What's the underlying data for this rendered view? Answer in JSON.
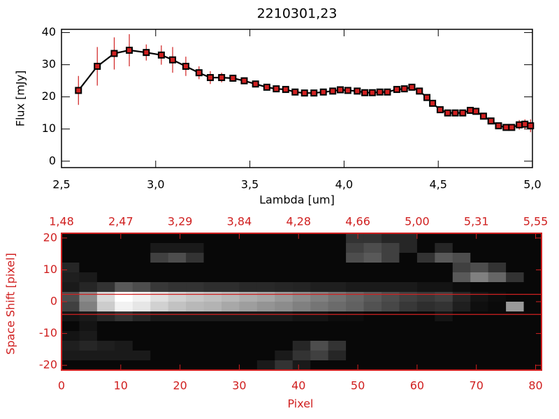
{
  "chart_data": [
    {
      "type": "line",
      "title": "2210301,23",
      "x_label": "Lambda [um]",
      "y_label": "Flux [mJy]",
      "x": [
        2.59,
        2.69,
        2.78,
        2.86,
        2.95,
        3.03,
        3.09,
        3.16,
        3.23,
        3.29,
        3.35,
        3.41,
        3.47,
        3.53,
        3.59,
        3.64,
        3.69,
        3.74,
        3.79,
        3.84,
        3.89,
        3.94,
        3.98,
        4.02,
        4.07,
        4.11,
        4.15,
        4.19,
        4.23,
        4.28,
        4.32,
        4.36,
        4.4,
        4.44,
        4.47,
        4.51,
        4.55,
        4.59,
        4.63,
        4.67,
        4.7,
        4.74,
        4.78,
        4.82,
        4.86,
        4.89,
        4.93,
        4.96,
        4.99
      ],
      "series": [
        {
          "color": "#000000",
          "error_color": "#d02020",
          "values": [
            22,
            29.5,
            33.5,
            34.5,
            33.8,
            33,
            31.5,
            29.5,
            27.5,
            26,
            26,
            25.8,
            25,
            24,
            23,
            22.5,
            22.3,
            21.5,
            21.2,
            21.2,
            21.5,
            21.8,
            22.2,
            22,
            21.8,
            21.3,
            21.3,
            21.5,
            21.5,
            22.3,
            22.5,
            23,
            21.8,
            19.8,
            18,
            16,
            15,
            15,
            15,
            15.8,
            15.5,
            14,
            12.5,
            11,
            10.5,
            10.5,
            11.3,
            11.5,
            11
          ],
          "errors": [
            4.5,
            6,
            5,
            5,
            2.5,
            3,
            4,
            3,
            2,
            2,
            1.5,
            1,
            1,
            0.8,
            0.8,
            0.8,
            0.8,
            0.8,
            0.8,
            0.8,
            0.8,
            0.8,
            0.8,
            0.8,
            0.8,
            0.8,
            0.8,
            0.8,
            0.8,
            0.8,
            0.8,
            0.8,
            0.8,
            0.8,
            0.8,
            0.8,
            0.8,
            0.8,
            0.8,
            0.8,
            0.8,
            0.8,
            0.8,
            0.8,
            0.8,
            0.8,
            1.5,
            1.5,
            2
          ]
        }
      ],
      "xlim": [
        2.5,
        5.0
      ],
      "ylim": [
        -2,
        41
      ],
      "xticks": [
        {
          "value": 2.5,
          "label": "2,5"
        },
        {
          "value": 3.0,
          "label": "3,0"
        },
        {
          "value": 3.5,
          "label": "3,5"
        },
        {
          "value": 4.0,
          "label": "4,0"
        },
        {
          "value": 4.5,
          "label": "4,5"
        },
        {
          "value": 5.0,
          "label": "5,0"
        }
      ],
      "yticks": [
        0,
        10,
        20,
        30,
        40
      ]
    },
    {
      "type": "heatmap",
      "x_label": "Pixel",
      "y_label": "Space Shift [pixel]",
      "color": "#d02020",
      "xlim": [
        0,
        81
      ],
      "ylim": [
        -21.5,
        21.5
      ],
      "xticks": [
        0,
        10,
        20,
        30,
        40,
        50,
        60,
        70,
        80
      ],
      "x2ticks": [
        {
          "value": 1.48,
          "label": "1,48"
        },
        {
          "value": 2.47,
          "label": "2,47"
        },
        {
          "value": 3.29,
          "label": "3,29"
        },
        {
          "value": 3.84,
          "label": "3,84"
        },
        {
          "value": 4.28,
          "label": "4,28"
        },
        {
          "value": 4.66,
          "label": "4,66"
        },
        {
          "value": 5.0,
          "label": "5,00"
        },
        {
          "value": 5.31,
          "label": "5,31"
        },
        {
          "value": 5.55,
          "label": "5,55"
        }
      ],
      "yticks": [
        -20,
        -10,
        0,
        10,
        20
      ],
      "hlines": [
        2.3,
        -4.0
      ],
      "rows": [
        [
          3,
          3,
          3,
          3,
          3,
          3,
          3,
          3,
          3,
          3,
          3,
          3,
          3,
          3,
          3,
          3,
          20,
          20,
          15,
          15,
          3,
          3,
          3,
          3,
          3,
          3,
          3
        ],
        [
          3,
          3,
          3,
          3,
          3,
          10,
          10,
          10,
          3,
          3,
          3,
          3,
          3,
          3,
          3,
          3,
          25,
          30,
          25,
          15,
          3,
          15,
          3,
          3,
          3,
          3,
          3
        ],
        [
          3,
          3,
          3,
          3,
          3,
          25,
          30,
          20,
          3,
          3,
          3,
          3,
          3,
          3,
          3,
          3,
          30,
          35,
          25,
          3,
          20,
          35,
          30,
          3,
          3,
          3,
          3
        ],
        [
          15,
          3,
          3,
          3,
          3,
          3,
          3,
          3,
          3,
          3,
          3,
          3,
          3,
          3,
          3,
          3,
          3,
          3,
          3,
          3,
          3,
          3,
          25,
          30,
          20,
          3,
          3
        ],
        [
          12,
          10,
          3,
          3,
          3,
          3,
          3,
          3,
          3,
          3,
          3,
          3,
          3,
          3,
          3,
          3,
          3,
          3,
          3,
          3,
          3,
          3,
          35,
          50,
          40,
          20,
          3
        ],
        [
          10,
          15,
          20,
          35,
          30,
          22,
          20,
          20,
          18,
          18,
          16,
          16,
          15,
          14,
          12,
          12,
          10,
          10,
          10,
          10,
          8,
          8,
          5,
          3,
          3,
          3,
          3
        ],
        [
          30,
          55,
          85,
          100,
          95,
          88,
          82,
          78,
          75,
          72,
          68,
          65,
          60,
          55,
          50,
          45,
          40,
          35,
          30,
          25,
          22,
          25,
          15,
          8,
          5,
          3,
          3
        ],
        [
          25,
          50,
          80,
          95,
          90,
          82,
          76,
          72,
          70,
          66,
          62,
          58,
          55,
          50,
          46,
          42,
          38,
          32,
          28,
          22,
          18,
          20,
          12,
          6,
          4,
          60,
          3
        ],
        [
          8,
          10,
          15,
          20,
          15,
          10,
          10,
          10,
          10,
          10,
          10,
          10,
          10,
          8,
          8,
          5,
          5,
          3,
          3,
          3,
          3,
          8,
          3,
          3,
          3,
          3,
          3
        ],
        [
          3,
          8,
          3,
          3,
          3,
          3,
          3,
          3,
          3,
          3,
          3,
          3,
          3,
          3,
          3,
          3,
          3,
          3,
          3,
          3,
          3,
          3,
          3,
          3,
          3,
          3,
          3
        ],
        [
          8,
          10,
          3,
          3,
          3,
          3,
          3,
          3,
          3,
          3,
          3,
          3,
          3,
          3,
          3,
          3,
          3,
          3,
          3,
          3,
          3,
          3,
          3,
          3,
          3,
          3,
          3
        ],
        [
          12,
          15,
          12,
          10,
          3,
          3,
          3,
          3,
          3,
          3,
          3,
          3,
          3,
          15,
          30,
          20,
          3,
          3,
          3,
          3,
          3,
          3,
          3,
          3,
          3,
          3,
          3
        ],
        [
          10,
          10,
          10,
          10,
          10,
          3,
          3,
          3,
          3,
          3,
          3,
          3,
          10,
          20,
          25,
          15,
          3,
          3,
          3,
          3,
          3,
          3,
          3,
          3,
          3,
          3,
          3
        ],
        [
          3,
          3,
          3,
          3,
          3,
          3,
          3,
          3,
          3,
          3,
          3,
          10,
          20,
          10,
          3,
          3,
          3,
          3,
          3,
          3,
          3,
          3,
          3,
          3,
          3,
          3,
          3
        ]
      ]
    }
  ]
}
